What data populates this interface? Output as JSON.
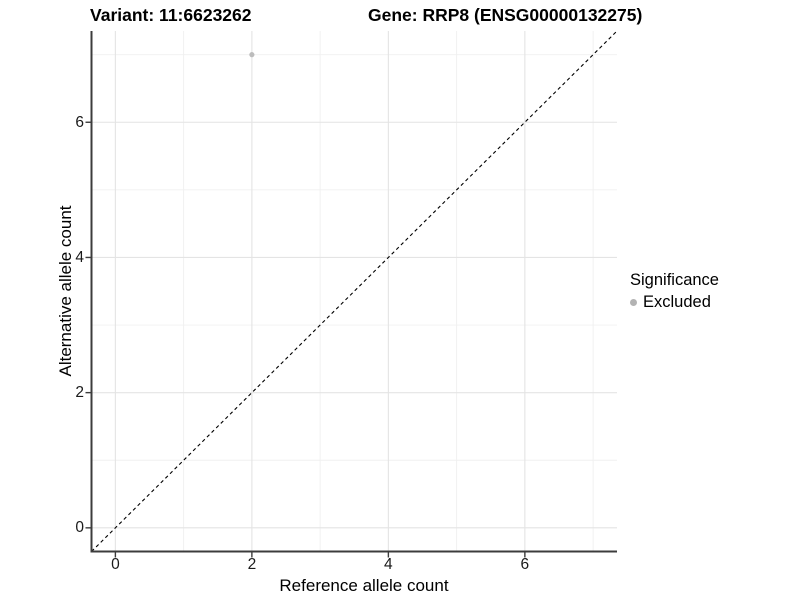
{
  "figure": {
    "title_left": "Variant: 11:6623262",
    "title_right": "Gene: RRP8 (ENSG00000132275)"
  },
  "chart_data": {
    "type": "scatter",
    "title": "Variant: 11:6623262        Gene: RRP8 (ENSG00000132275)",
    "xlabel": "Reference allele count",
    "ylabel": "Alternative allele count",
    "xlim": [
      -0.35,
      7.35
    ],
    "ylim": [
      -0.35,
      7.35
    ],
    "xticks": [
      0,
      2,
      4,
      6
    ],
    "yticks": [
      0,
      2,
      4,
      6
    ],
    "xtick_labels": [
      "0",
      "2",
      "4",
      "6"
    ],
    "ytick_labels": [
      "0",
      "2",
      "4",
      "6"
    ],
    "minor_grid_x": [
      1,
      3,
      5,
      7
    ],
    "minor_grid_y": [
      1,
      3,
      5,
      7
    ],
    "grid": true,
    "points": [
      {
        "x": 2,
        "y": 7,
        "series": "Excluded"
      }
    ],
    "reference_line": {
      "type": "identity",
      "slope": 1,
      "intercept": 0,
      "style": "dashed",
      "color": "#000000"
    },
    "legend": {
      "title": "Significance",
      "position": "right",
      "entries": [
        {
          "label": "Excluded",
          "color": "#b3b3b3"
        }
      ]
    },
    "colors": {
      "point": "#bcbcbc",
      "axis_line": "#3c3c3c",
      "grid_major": "#e4e4e4",
      "grid_minor": "#f0f0f0",
      "background": "#ffffff"
    }
  }
}
